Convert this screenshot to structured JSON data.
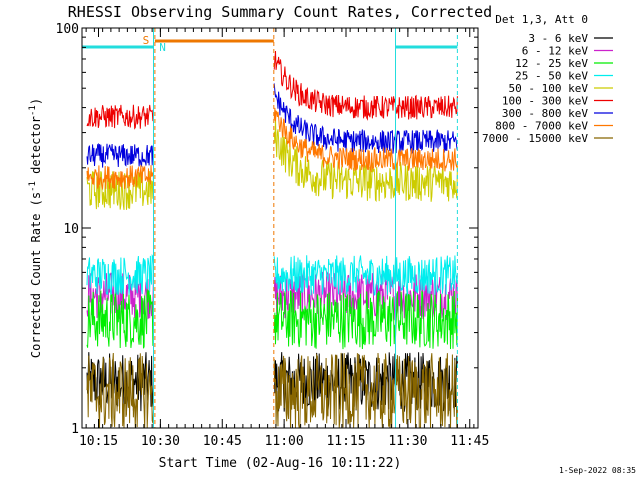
{
  "chart_data": {
    "type": "line",
    "title": "RHESSI Observing Summary Count Rates, Corrected",
    "xlabel": "Start Time (02-Aug-16 10:11:22)",
    "ylabel": "Corrected Count Rate (s",
    "ylabel_sup": "-1",
    "ylabel_mid": " detector",
    "ylabel_end": ")",
    "y_scale": "log",
    "ylim": [
      1,
      100
    ],
    "xlim_minutes": [
      10.1833,
      11.7833
    ],
    "x_ticks": [
      {
        "label": "10:15",
        "t": 10.25
      },
      {
        "label": "10:30",
        "t": 10.5
      },
      {
        "label": "10:45",
        "t": 10.75
      },
      {
        "label": "11:00",
        "t": 11.0
      },
      {
        "label": "11:15",
        "t": 11.25
      },
      {
        "label": "11:30",
        "t": 11.5
      },
      {
        "label": "11:45",
        "t": 11.75
      }
    ],
    "y_ticks": [
      {
        "label": "100",
        "v": 100
      },
      {
        "label": "10",
        "v": 10
      },
      {
        "label": "1",
        "v": 1
      }
    ],
    "legend_title": "Det 1,3, Att 0",
    "legend_position": "right",
    "footer": "1-Sep-2022 08:35",
    "annotations": {
      "saa_label": "S",
      "night_label": "N",
      "saa_range": [
        10.4778,
        10.9583
      ],
      "night_ranges": [
        [
          10.1833,
          10.4722
        ],
        [
          11.45,
          11.7
        ]
      ],
      "saa_color": "#ee7700",
      "night_color": "#22dddd",
      "vlines": [
        {
          "t": 10.4722,
          "color": "#22dddd",
          "style": "solid"
        },
        {
          "t": 10.4778,
          "color": "#ee7700",
          "style": "dashed"
        },
        {
          "t": 10.9583,
          "color": "#ee7700",
          "style": "dashed"
        },
        {
          "t": 11.45,
          "color": "#22dddd",
          "style": "solid"
        },
        {
          "t": 11.7,
          "color": "#22dddd",
          "style": "dashed"
        }
      ]
    },
    "segments": [
      [
        10.2033,
        10.4722
      ],
      [
        10.96,
        11.7
      ]
    ],
    "series": [
      {
        "name": "3 - 6 keV",
        "color": "#000000",
        "levels": [
          1.7,
          1.7
        ],
        "noise": 0.15
      },
      {
        "name": "6 - 12 keV",
        "color": "#cc22cc",
        "levels": [
          4.6,
          4.6
        ],
        "noise": 0.12
      },
      {
        "name": "12 - 25 keV",
        "color": "#00ee00",
        "levels": [
          3.5,
          3.5
        ],
        "noise": 0.15
      },
      {
        "name": "25 - 50 keV",
        "color": "#00eeee",
        "levels": [
          5.8,
          5.8
        ],
        "noise": 0.1
      },
      {
        "name": "50 - 100 keV",
        "color": "#cccc00",
        "levels": [
          15.5,
          17
        ],
        "noise": 0.1
      },
      {
        "name": "100 - 300 keV",
        "color": "#ee0000",
        "levels": [
          36,
          40
        ],
        "noise": 0.06
      },
      {
        "name": "300 - 800 keV",
        "color": "#0000dd",
        "levels": [
          23,
          27
        ],
        "noise": 0.06
      },
      {
        "name": "800 - 7000 keV",
        "color": "#ff7700",
        "levels": [
          18,
          22
        ],
        "noise": 0.06
      },
      {
        "name": "7000 - 15000 keV",
        "color": "#886600",
        "levels": [
          1.5,
          1.5
        ],
        "noise": 0.2
      }
    ]
  }
}
